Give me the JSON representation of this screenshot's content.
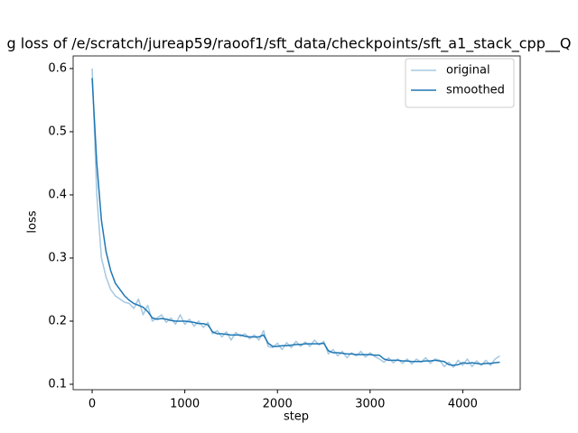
{
  "chart_data": {
    "type": "line",
    "title": "g loss of /e/scratch/jureap59/raoof1/sft_data/checkpoints/sft_a1_stack_cpp__Q",
    "x_label": "step",
    "y_label": "loss",
    "x": [
      0,
      50,
      100,
      150,
      200,
      250,
      300,
      350,
      400,
      450,
      500,
      550,
      600,
      650,
      700,
      750,
      800,
      850,
      900,
      950,
      1000,
      1050,
      1100,
      1150,
      1200,
      1250,
      1300,
      1350,
      1400,
      1450,
      1500,
      1550,
      1600,
      1650,
      1700,
      1750,
      1800,
      1850,
      1900,
      1950,
      2000,
      2050,
      2100,
      2150,
      2200,
      2250,
      2300,
      2350,
      2400,
      2450,
      2500,
      2550,
      2600,
      2650,
      2700,
      2750,
      2800,
      2850,
      2900,
      2950,
      3000,
      3050,
      3100,
      3150,
      3200,
      3250,
      3300,
      3350,
      3400,
      3450,
      3500,
      3550,
      3600,
      3650,
      3700,
      3750,
      3800,
      3850,
      3900,
      3950,
      4000,
      4050,
      4100,
      4150,
      4200,
      4250,
      4300,
      4350,
      4400
    ],
    "series": [
      {
        "name": "original",
        "color": "#a5c8e1",
        "values": [
          0.6,
          0.4,
          0.3,
          0.27,
          0.25,
          0.24,
          0.235,
          0.23,
          0.228,
          0.22,
          0.235,
          0.21,
          0.225,
          0.2,
          0.205,
          0.21,
          0.198,
          0.205,
          0.195,
          0.21,
          0.195,
          0.203,
          0.192,
          0.2,
          0.19,
          0.198,
          0.18,
          0.185,
          0.175,
          0.183,
          0.17,
          0.182,
          0.176,
          0.18,
          0.172,
          0.178,
          0.17,
          0.185,
          0.16,
          0.158,
          0.165,
          0.155,
          0.166,
          0.158,
          0.168,
          0.16,
          0.167,
          0.16,
          0.17,
          0.162,
          0.168,
          0.148,
          0.155,
          0.145,
          0.152,
          0.142,
          0.15,
          0.145,
          0.152,
          0.143,
          0.15,
          0.144,
          0.14,
          0.135,
          0.142,
          0.134,
          0.14,
          0.133,
          0.14,
          0.132,
          0.14,
          0.135,
          0.142,
          0.133,
          0.14,
          0.138,
          0.128,
          0.135,
          0.127,
          0.138,
          0.13,
          0.14,
          0.128,
          0.137,
          0.13,
          0.138,
          0.13,
          0.14,
          0.145
        ]
      },
      {
        "name": "smoothed",
        "color": "#1f77b4",
        "values": [
          0.585,
          0.45,
          0.36,
          0.31,
          0.28,
          0.26,
          0.25,
          0.24,
          0.233,
          0.228,
          0.225,
          0.222,
          0.215,
          0.205,
          0.203,
          0.204,
          0.203,
          0.201,
          0.2,
          0.2,
          0.2,
          0.199,
          0.198,
          0.196,
          0.196,
          0.194,
          0.183,
          0.18,
          0.18,
          0.179,
          0.178,
          0.178,
          0.178,
          0.176,
          0.175,
          0.175,
          0.175,
          0.178,
          0.165,
          0.16,
          0.16,
          0.161,
          0.161,
          0.162,
          0.163,
          0.163,
          0.164,
          0.164,
          0.164,
          0.164,
          0.165,
          0.153,
          0.15,
          0.15,
          0.149,
          0.148,
          0.148,
          0.147,
          0.147,
          0.147,
          0.147,
          0.146,
          0.146,
          0.14,
          0.138,
          0.138,
          0.138,
          0.137,
          0.137,
          0.136,
          0.136,
          0.136,
          0.137,
          0.137,
          0.138,
          0.137,
          0.136,
          0.131,
          0.13,
          0.131,
          0.134,
          0.133,
          0.134,
          0.133,
          0.132,
          0.133,
          0.133,
          0.134,
          0.135
        ]
      }
    ],
    "xlim": [
      -205,
      4620
    ],
    "ylim": [
      0.0914,
      0.62
    ],
    "xticks": [
      0,
      1000,
      2000,
      3000,
      4000
    ],
    "yticks": [
      0.1,
      0.2,
      0.3,
      0.4,
      0.5,
      0.6
    ],
    "legend": "upper right"
  }
}
